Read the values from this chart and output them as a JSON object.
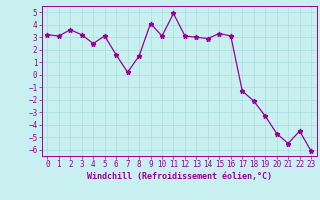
{
  "x": [
    0,
    1,
    2,
    3,
    4,
    5,
    6,
    7,
    8,
    9,
    10,
    11,
    12,
    13,
    14,
    15,
    16,
    17,
    18,
    19,
    20,
    21,
    22,
    23
  ],
  "y": [
    3.2,
    3.1,
    3.6,
    3.2,
    2.5,
    3.1,
    1.6,
    0.2,
    1.5,
    4.1,
    3.1,
    4.9,
    3.1,
    3.0,
    2.9,
    3.3,
    3.1,
    -1.3,
    -2.1,
    -3.3,
    -4.7,
    -5.5,
    -4.5,
    -6.1
  ],
  "line_color": "#990099",
  "marker": "*",
  "bg_color": "#c8f0f0",
  "grid_color": "#aadddd",
  "xlabel": "Windchill (Refroidissement éolien,°C)",
  "xlim": [
    -0.5,
    23.5
  ],
  "ylim": [
    -6.5,
    5.5
  ],
  "yticks": [
    -6,
    -5,
    -4,
    -3,
    -2,
    -1,
    0,
    1,
    2,
    3,
    4,
    5
  ],
  "xticks": [
    0,
    1,
    2,
    3,
    4,
    5,
    6,
    7,
    8,
    9,
    10,
    11,
    12,
    13,
    14,
    15,
    16,
    17,
    18,
    19,
    20,
    21,
    22,
    23
  ],
  "tick_color": "#990099",
  "label_color": "#990099",
  "tick_fontsize": 5.5,
  "xlabel_fontsize": 6.0
}
